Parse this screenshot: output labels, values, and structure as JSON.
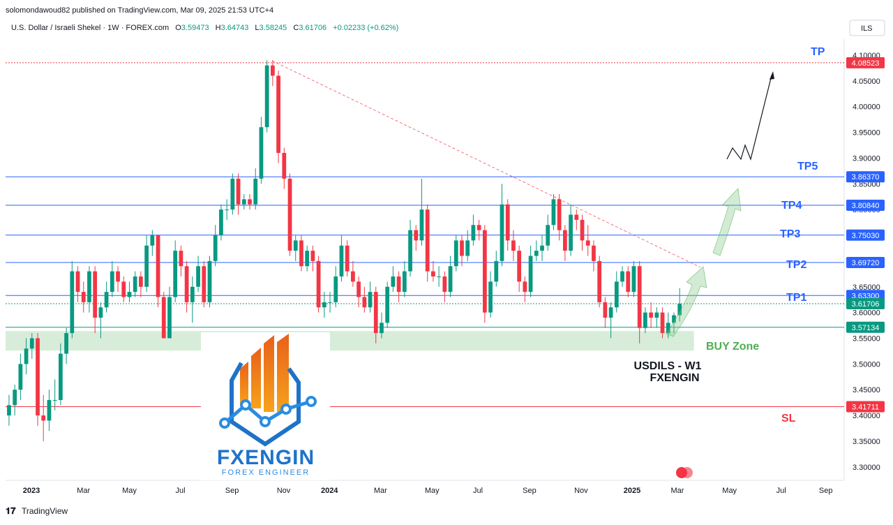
{
  "header": {
    "published": "solomondawoud82 published on TradingView.com, Mar 09, 2025 21:53 UTC+4",
    "symbol": "U.S. Dollar / Israeli Shekel · 1W · FOREX.com",
    "ohlc_labels": [
      "O",
      "H",
      "L",
      "C"
    ],
    "change": "+0.02233 (+0.62%)",
    "currency": "ILS"
  },
  "chart_data": {
    "type": "candlestick",
    "up_color": "#089981",
    "down_color": "#f23645",
    "candles": [
      [
        3.4,
        3.44,
        3.38,
        3.42
      ],
      [
        3.42,
        3.46,
        3.4,
        3.45
      ],
      [
        3.45,
        3.52,
        3.43,
        3.5
      ],
      [
        3.5,
        3.55,
        3.48,
        3.53
      ],
      [
        3.53,
        3.56,
        3.51,
        3.55
      ],
      [
        3.55,
        3.56,
        3.38,
        3.4
      ],
      [
        3.4,
        3.44,
        3.35,
        3.39
      ],
      [
        3.39,
        3.45,
        3.37,
        3.43
      ],
      [
        3.43,
        3.47,
        3.41,
        3.43
      ],
      [
        3.43,
        3.54,
        3.42,
        3.52
      ],
      [
        3.52,
        3.57,
        3.5,
        3.56
      ],
      [
        3.56,
        3.7,
        3.55,
        3.68
      ],
      [
        3.68,
        3.69,
        3.62,
        3.64
      ],
      [
        3.64,
        3.66,
        3.6,
        3.62
      ],
      [
        3.62,
        3.69,
        3.6,
        3.68
      ],
      [
        3.68,
        3.69,
        3.56,
        3.59
      ],
      [
        3.59,
        3.62,
        3.55,
        3.61
      ],
      [
        3.61,
        3.66,
        3.6,
        3.64
      ],
      [
        3.64,
        3.7,
        3.63,
        3.68
      ],
      [
        3.68,
        3.69,
        3.64,
        3.66
      ],
      [
        3.66,
        3.67,
        3.62,
        3.63
      ],
      [
        3.63,
        3.66,
        3.62,
        3.64
      ],
      [
        3.64,
        3.68,
        3.63,
        3.67
      ],
      [
        3.67,
        3.68,
        3.63,
        3.65
      ],
      [
        3.65,
        3.75,
        3.64,
        3.73
      ],
      [
        3.73,
        3.76,
        3.71,
        3.75
      ],
      [
        3.75,
        3.75,
        3.61,
        3.63
      ],
      [
        3.63,
        3.64,
        3.55,
        3.55
      ],
      [
        3.55,
        3.65,
        3.55,
        3.63
      ],
      [
        3.63,
        3.74,
        3.62,
        3.72
      ],
      [
        3.72,
        3.73,
        3.67,
        3.69
      ],
      [
        3.69,
        3.7,
        3.6,
        3.62
      ],
      [
        3.62,
        3.67,
        3.58,
        3.65
      ],
      [
        3.65,
        3.71,
        3.64,
        3.69
      ],
      [
        3.69,
        3.7,
        3.61,
        3.62
      ],
      [
        3.62,
        3.71,
        3.61,
        3.7
      ],
      [
        3.7,
        3.77,
        3.69,
        3.75
      ],
      [
        3.75,
        3.81,
        3.74,
        3.8
      ],
      [
        3.8,
        3.82,
        3.78,
        3.8
      ],
      [
        3.8,
        3.87,
        3.79,
        3.86
      ],
      [
        3.86,
        3.87,
        3.79,
        3.81
      ],
      [
        3.81,
        3.83,
        3.8,
        3.82
      ],
      [
        3.82,
        3.83,
        3.8,
        3.81
      ],
      [
        3.81,
        3.88,
        3.8,
        3.86
      ],
      [
        3.86,
        3.98,
        3.85,
        3.96
      ],
      [
        3.96,
        4.09,
        3.95,
        4.08
      ],
      [
        4.08,
        4.09,
        4.04,
        4.06
      ],
      [
        4.06,
        4.07,
        3.89,
        3.91
      ],
      [
        3.91,
        3.92,
        3.84,
        3.86
      ],
      [
        3.86,
        3.87,
        3.71,
        3.72
      ],
      [
        3.72,
        3.75,
        3.7,
        3.74
      ],
      [
        3.74,
        3.75,
        3.68,
        3.69
      ],
      [
        3.69,
        3.73,
        3.68,
        3.72
      ],
      [
        3.72,
        3.73,
        3.68,
        3.7
      ],
      [
        3.7,
        3.71,
        3.6,
        3.61
      ],
      [
        3.61,
        3.64,
        3.59,
        3.62
      ],
      [
        3.62,
        3.64,
        3.6,
        3.62
      ],
      [
        3.62,
        3.69,
        3.61,
        3.67
      ],
      [
        3.67,
        3.75,
        3.66,
        3.73
      ],
      [
        3.73,
        3.74,
        3.67,
        3.68
      ],
      [
        3.68,
        3.7,
        3.65,
        3.66
      ],
      [
        3.66,
        3.67,
        3.61,
        3.63
      ],
      [
        3.63,
        3.65,
        3.6,
        3.61
      ],
      [
        3.61,
        3.66,
        3.6,
        3.64
      ],
      [
        3.64,
        3.65,
        3.54,
        3.56
      ],
      [
        3.56,
        3.6,
        3.55,
        3.58
      ],
      [
        3.58,
        3.66,
        3.57,
        3.65
      ],
      [
        3.65,
        3.69,
        3.64,
        3.67
      ],
      [
        3.67,
        3.68,
        3.62,
        3.64
      ],
      [
        3.64,
        3.7,
        3.63,
        3.68
      ],
      [
        3.68,
        3.78,
        3.67,
        3.76
      ],
      [
        3.76,
        3.77,
        3.72,
        3.74
      ],
      [
        3.74,
        3.86,
        3.73,
        3.8
      ],
      [
        3.8,
        3.81,
        3.66,
        3.68
      ],
      [
        3.68,
        3.7,
        3.66,
        3.67
      ],
      [
        3.67,
        3.69,
        3.65,
        3.67
      ],
      [
        3.67,
        3.68,
        3.62,
        3.64
      ],
      [
        3.64,
        3.71,
        3.63,
        3.69
      ],
      [
        3.69,
        3.75,
        3.68,
        3.74
      ],
      [
        3.74,
        3.75,
        3.69,
        3.71
      ],
      [
        3.71,
        3.76,
        3.7,
        3.74
      ],
      [
        3.74,
        3.79,
        3.73,
        3.77
      ],
      [
        3.77,
        3.78,
        3.74,
        3.76
      ],
      [
        3.76,
        3.77,
        3.58,
        3.6
      ],
      [
        3.6,
        3.68,
        3.59,
        3.66
      ],
      [
        3.66,
        3.72,
        3.65,
        3.7
      ],
      [
        3.7,
        3.85,
        3.69,
        3.81
      ],
      [
        3.81,
        3.82,
        3.72,
        3.74
      ],
      [
        3.74,
        3.76,
        3.7,
        3.72
      ],
      [
        3.72,
        3.73,
        3.64,
        3.66
      ],
      [
        3.66,
        3.67,
        3.62,
        3.64
      ],
      [
        3.64,
        3.73,
        3.63,
        3.71
      ],
      [
        3.71,
        3.74,
        3.7,
        3.72
      ],
      [
        3.72,
        3.75,
        3.7,
        3.73
      ],
      [
        3.73,
        3.79,
        3.72,
        3.77
      ],
      [
        3.77,
        3.83,
        3.76,
        3.82
      ],
      [
        3.82,
        3.83,
        3.74,
        3.76
      ],
      [
        3.76,
        3.77,
        3.7,
        3.72
      ],
      [
        3.72,
        3.81,
        3.71,
        3.79
      ],
      [
        3.79,
        3.8,
        3.76,
        3.78
      ],
      [
        3.78,
        3.79,
        3.72,
        3.74
      ],
      [
        3.74,
        3.77,
        3.71,
        3.73
      ],
      [
        3.73,
        3.74,
        3.68,
        3.7
      ],
      [
        3.7,
        3.71,
        3.61,
        3.62
      ],
      [
        3.62,
        3.63,
        3.57,
        3.59
      ],
      [
        3.59,
        3.62,
        3.55,
        3.61
      ],
      [
        3.61,
        3.68,
        3.6,
        3.66
      ],
      [
        3.66,
        3.69,
        3.65,
        3.68
      ],
      [
        3.68,
        3.69,
        3.63,
        3.64
      ],
      [
        3.64,
        3.7,
        3.63,
        3.69
      ],
      [
        3.69,
        3.7,
        3.54,
        3.57
      ],
      [
        3.57,
        3.61,
        3.56,
        3.6
      ],
      [
        3.6,
        3.62,
        3.57,
        3.59
      ],
      [
        3.59,
        3.61,
        3.57,
        3.6
      ],
      [
        3.6,
        3.61,
        3.55,
        3.56
      ],
      [
        3.56,
        3.6,
        3.55,
        3.58
      ],
      [
        3.58,
        3.6,
        3.56,
        3.59473
      ],
      [
        3.59473,
        3.64743,
        3.58245,
        3.61706
      ]
    ],
    "xlim": [
      -0.6,
      145.7
    ],
    "xticks": [
      {
        "value": 3.9,
        "label": "2023"
      },
      {
        "value": 13.0,
        "label": "Mar"
      },
      {
        "value": 21.0,
        "label": "May"
      },
      {
        "value": 29.9,
        "label": "Jul"
      },
      {
        "value": 38.9,
        "label": "Sep"
      },
      {
        "value": 47.9,
        "label": "Nov"
      },
      {
        "value": 55.9,
        "label": "2024"
      },
      {
        "value": 64.8,
        "label": "Mar"
      },
      {
        "value": 73.8,
        "label": "May"
      },
      {
        "value": 81.8,
        "label": "Jul"
      },
      {
        "value": 90.8,
        "label": "Sep"
      },
      {
        "value": 99.8,
        "label": "Nov"
      },
      {
        "value": 108.7,
        "label": "2025"
      },
      {
        "value": 116.6,
        "label": "Mar"
      },
      {
        "value": 125.7,
        "label": "May"
      },
      {
        "value": 134.7,
        "label": "Jul"
      },
      {
        "value": 142.5,
        "label": "Sep"
      }
    ],
    "ylim": [
      3.274,
      4.123
    ],
    "yticks": [
      {
        "value": 3.3,
        "label": "3.30000"
      },
      {
        "value": 3.35,
        "label": "3.35000"
      },
      {
        "value": 3.4,
        "label": "3.40000"
      },
      {
        "value": 3.45,
        "label": "3.45000"
      },
      {
        "value": 3.5,
        "label": "3.50000"
      },
      {
        "value": 3.55,
        "label": "3.55000"
      },
      {
        "value": 3.6,
        "label": "3.60000"
      },
      {
        "value": 3.65,
        "label": "3.65000"
      },
      {
        "value": 3.7,
        "label": "3.70000"
      },
      {
        "value": 3.75,
        "label": "3.75000"
      },
      {
        "value": 3.8,
        "label": "3.80000"
      },
      {
        "value": 3.85,
        "label": "3.85000"
      },
      {
        "value": 3.9,
        "label": "3.90000"
      },
      {
        "value": 3.95,
        "label": "3.95000"
      },
      {
        "value": 4.0,
        "label": "4.00000"
      },
      {
        "value": 4.05,
        "label": "4.05000"
      },
      {
        "value": 4.1,
        "label": "4.10000"
      }
    ],
    "grid": false,
    "levels": [
      {
        "name": "TP",
        "value": 4.08523,
        "label": "4.08523",
        "color": "#f23645",
        "name_color": "#2962ff",
        "style": "dotted"
      },
      {
        "name": "TP5",
        "value": 3.8637,
        "label": "3.86370",
        "color": "#2962ff",
        "name_color": "#2962ff"
      },
      {
        "name": "TP4",
        "value": 3.8084,
        "label": "3.80840",
        "color": "#2962ff",
        "name_color": "#2962ff"
      },
      {
        "name": "TP3",
        "value": 3.7503,
        "label": "3.75030",
        "color": "#2962ff",
        "name_color": "#2962ff"
      },
      {
        "name": "TP2",
        "value": 3.6972,
        "label": "3.69720",
        "color": "#2962ff",
        "name_color": "#2962ff"
      },
      {
        "name": "TP1",
        "value": 3.633,
        "label": "3.63300",
        "color": "#2962ff",
        "name_color": "#2962ff"
      },
      {
        "value": 3.61706,
        "label": "3.61706",
        "color": "#089981",
        "style": "dotted"
      },
      {
        "value": 3.57134,
        "label": "3.57134",
        "color": "#089981"
      },
      {
        "name": "SL",
        "value": 3.41711,
        "label": "3.41711",
        "color": "#f23645",
        "name_color": "#f23645"
      }
    ],
    "buy_zone": {
      "label": "BUY Zone",
      "ylim": [
        3.526,
        3.564
      ],
      "xlim": [
        -0.6,
        119.5
      ],
      "color": "#4caf50"
    },
    "trendline": {
      "x": [
        45.9,
        120.6
      ],
      "y": [
        4.089,
        3.688
      ],
      "color": "#f23645"
    },
    "annotation": [
      "USDILS - W1",
      "FXENGIN"
    ]
  },
  "logo": {
    "title": "FXENGIN",
    "subtitle": "FOREX ENGINEER"
  },
  "footer": {
    "brand": "TradingView"
  }
}
